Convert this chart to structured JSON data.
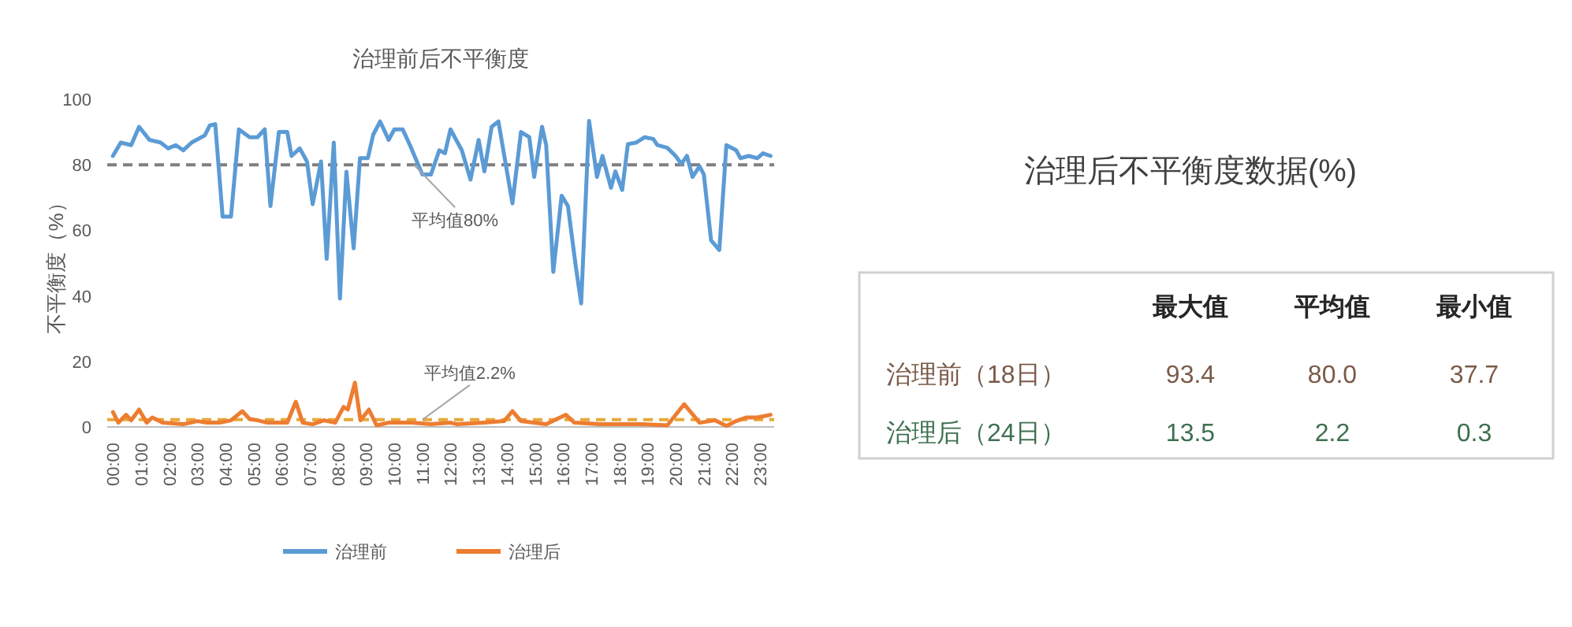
{
  "chart_data": [
    {
      "type": "line",
      "title": "治理前后不平衡度",
      "ylabel": "不平衡度（%）",
      "xlim": [
        -0.2,
        23.5
      ],
      "ylim": [
        0,
        100
      ],
      "yticks": [
        0,
        20,
        40,
        60,
        80,
        100
      ],
      "xticks": [
        {
          "value": 0,
          "label": "00:00"
        },
        {
          "value": 1,
          "label": "01:00"
        },
        {
          "value": 2,
          "label": "02:00"
        },
        {
          "value": 3,
          "label": "03:00"
        },
        {
          "value": 4,
          "label": "04:00"
        },
        {
          "value": 5,
          "label": "05:00"
        },
        {
          "value": 6,
          "label": "06:00"
        },
        {
          "value": 7,
          "label": "07:00"
        },
        {
          "value": 8,
          "label": "08:00"
        },
        {
          "value": 9,
          "label": "09:00"
        },
        {
          "value": 10,
          "label": "10:00"
        },
        {
          "value": 11,
          "label": "11:00"
        },
        {
          "value": 12,
          "label": "12:00"
        },
        {
          "value": 13,
          "label": "13:00"
        },
        {
          "value": 14,
          "label": "14:00"
        },
        {
          "value": 15,
          "label": "15:00"
        },
        {
          "value": 16,
          "label": "16:00"
        },
        {
          "value": 17,
          "label": "17:00"
        },
        {
          "value": 18,
          "label": "18:00"
        },
        {
          "value": 19,
          "label": "19:00"
        },
        {
          "value": 20,
          "label": "20:00"
        },
        {
          "value": 21,
          "label": "21:00"
        },
        {
          "value": 22,
          "label": "22:00"
        },
        {
          "value": 23,
          "label": "23:00"
        }
      ],
      "series": [
        {
          "name": "治理前",
          "color": "#5b9bd5",
          "x": [
            0,
            0.28,
            0.65,
            0.93,
            1.3,
            1.7,
            1.96,
            2.24,
            2.5,
            2.8,
            3.27,
            3.45,
            3.64,
            3.9,
            4.2,
            4.48,
            4.86,
            5.14,
            5.4,
            5.6,
            5.9,
            6.2,
            6.35,
            6.64,
            6.9,
            7.1,
            7.4,
            7.6,
            7.85,
            8.07,
            8.3,
            8.56,
            8.78,
            9.06,
            9.25,
            9.5,
            9.8,
            10,
            10.3,
            10.56,
            11,
            11.3,
            11.6,
            11.8,
            12,
            12.4,
            12.71,
            13,
            13.2,
            13.46,
            13.7,
            14.2,
            14.5,
            14.8,
            14.97,
            15.25,
            15.4,
            15.65,
            15.95,
            16.17,
            16.45,
            16.64,
            16.92,
            17.2,
            17.4,
            17.7,
            17.86,
            18.1,
            18.3,
            18.6,
            18.9,
            19.2,
            19.35,
            19.7,
            20,
            20.2,
            20.4,
            20.6,
            20.85,
            21,
            21.26,
            21.55,
            21.8,
            22.15,
            22.3,
            22.6,
            22.9,
            23.1,
            23.37
          ],
          "values": [
            82.7,
            86.8,
            86,
            91.6,
            87.6,
            86.8,
            85,
            86,
            84.4,
            86.8,
            89,
            92,
            92.4,
            64.2,
            64.2,
            90.8,
            88.4,
            88.4,
            90.8,
            67.4,
            90,
            90,
            82.7,
            85,
            81,
            68,
            81,
            51.3,
            86.8,
            39.2,
            77.9,
            54.5,
            82,
            82,
            89.2,
            93.2,
            87.6,
            90.8,
            90.8,
            86,
            77,
            77,
            84.4,
            83.5,
            90.8,
            84.4,
            75.5,
            87.6,
            78,
            91.6,
            93.2,
            68.2,
            90,
            88.4,
            76.3,
            91.6,
            86,
            47.3,
            70.6,
            67.4,
            48.9,
            37.7,
            93.4,
            76.3,
            82.7,
            73,
            78,
            72.3,
            86.3,
            86.8,
            88.4,
            87.9,
            86,
            85.2,
            82.7,
            80.3,
            82.7,
            76.3,
            79.5,
            77,
            56.9,
            54,
            86,
            84.4,
            82,
            82.7,
            82,
            83.5,
            82.7
          ]
        },
        {
          "name": "治理后",
          "color": "#ed7d31",
          "x": [
            0,
            0.2,
            0.47,
            0.65,
            0.93,
            1.2,
            1.4,
            1.77,
            2.5,
            3,
            3.36,
            3.8,
            4.2,
            4.6,
            4.86,
            5.14,
            5.5,
            6.2,
            6.5,
            6.75,
            7.1,
            7.5,
            7.9,
            8.2,
            8.35,
            8.6,
            8.8,
            9.1,
            9.37,
            9.8,
            10.6,
            11.3,
            12,
            12.24,
            13.2,
            13.9,
            14.2,
            14.5,
            15.4,
            16.1,
            16.4,
            17.3,
            18.8,
            19.7,
            20.3,
            20.85,
            21.4,
            21.8,
            22.15,
            22.5,
            22.9,
            23.37
          ],
          "values": [
            4.5,
            1.3,
            3.7,
            2,
            5.3,
            1.3,
            2.9,
            1.3,
            0.8,
            1.8,
            1.3,
            1.3,
            2,
            4.8,
            2.4,
            2,
            1.3,
            1.3,
            7.7,
            1.3,
            0.8,
            2,
            1.3,
            6.1,
            5.3,
            13.5,
            2,
            5.3,
            0.5,
            1.3,
            1.3,
            0.8,
            1.3,
            0.8,
            1.3,
            1.8,
            4.8,
            1.8,
            0.8,
            3.7,
            1.3,
            0.8,
            0.8,
            0.5,
            6.9,
            1.3,
            2,
            0.3,
            1.8,
            2.9,
            2.9,
            3.7
          ]
        }
      ],
      "ref_lines": [
        {
          "axis": "y",
          "value": 80,
          "label": "平均值80%",
          "color": "#7f7f7f",
          "line_style": "dashed"
        },
        {
          "axis": "y",
          "value": 2.2,
          "label": "平均值2.2%",
          "color": "#e8a838",
          "line_style": "dashed"
        }
      ],
      "legend": "bottom",
      "grid": false,
      "marker": "none",
      "line_style": "solid"
    },
    {
      "type": "other",
      "title": "治理后不平衡度数据(%)",
      "categories": [
        "最大值",
        "平均值",
        "最小值"
      ],
      "series": [
        {
          "name": "治理前（18日）",
          "color": "#7a5a48",
          "values": [
            93.4,
            80.0,
            37.7
          ],
          "value_labels": [
            "93.4",
            "80.0",
            "37.7"
          ]
        },
        {
          "name": "治理后（24日）",
          "color": "#3f7050",
          "values": [
            13.5,
            2.2,
            0.3
          ],
          "value_labels": [
            "13.5",
            "2.2",
            "0.3"
          ]
        }
      ]
    }
  ]
}
